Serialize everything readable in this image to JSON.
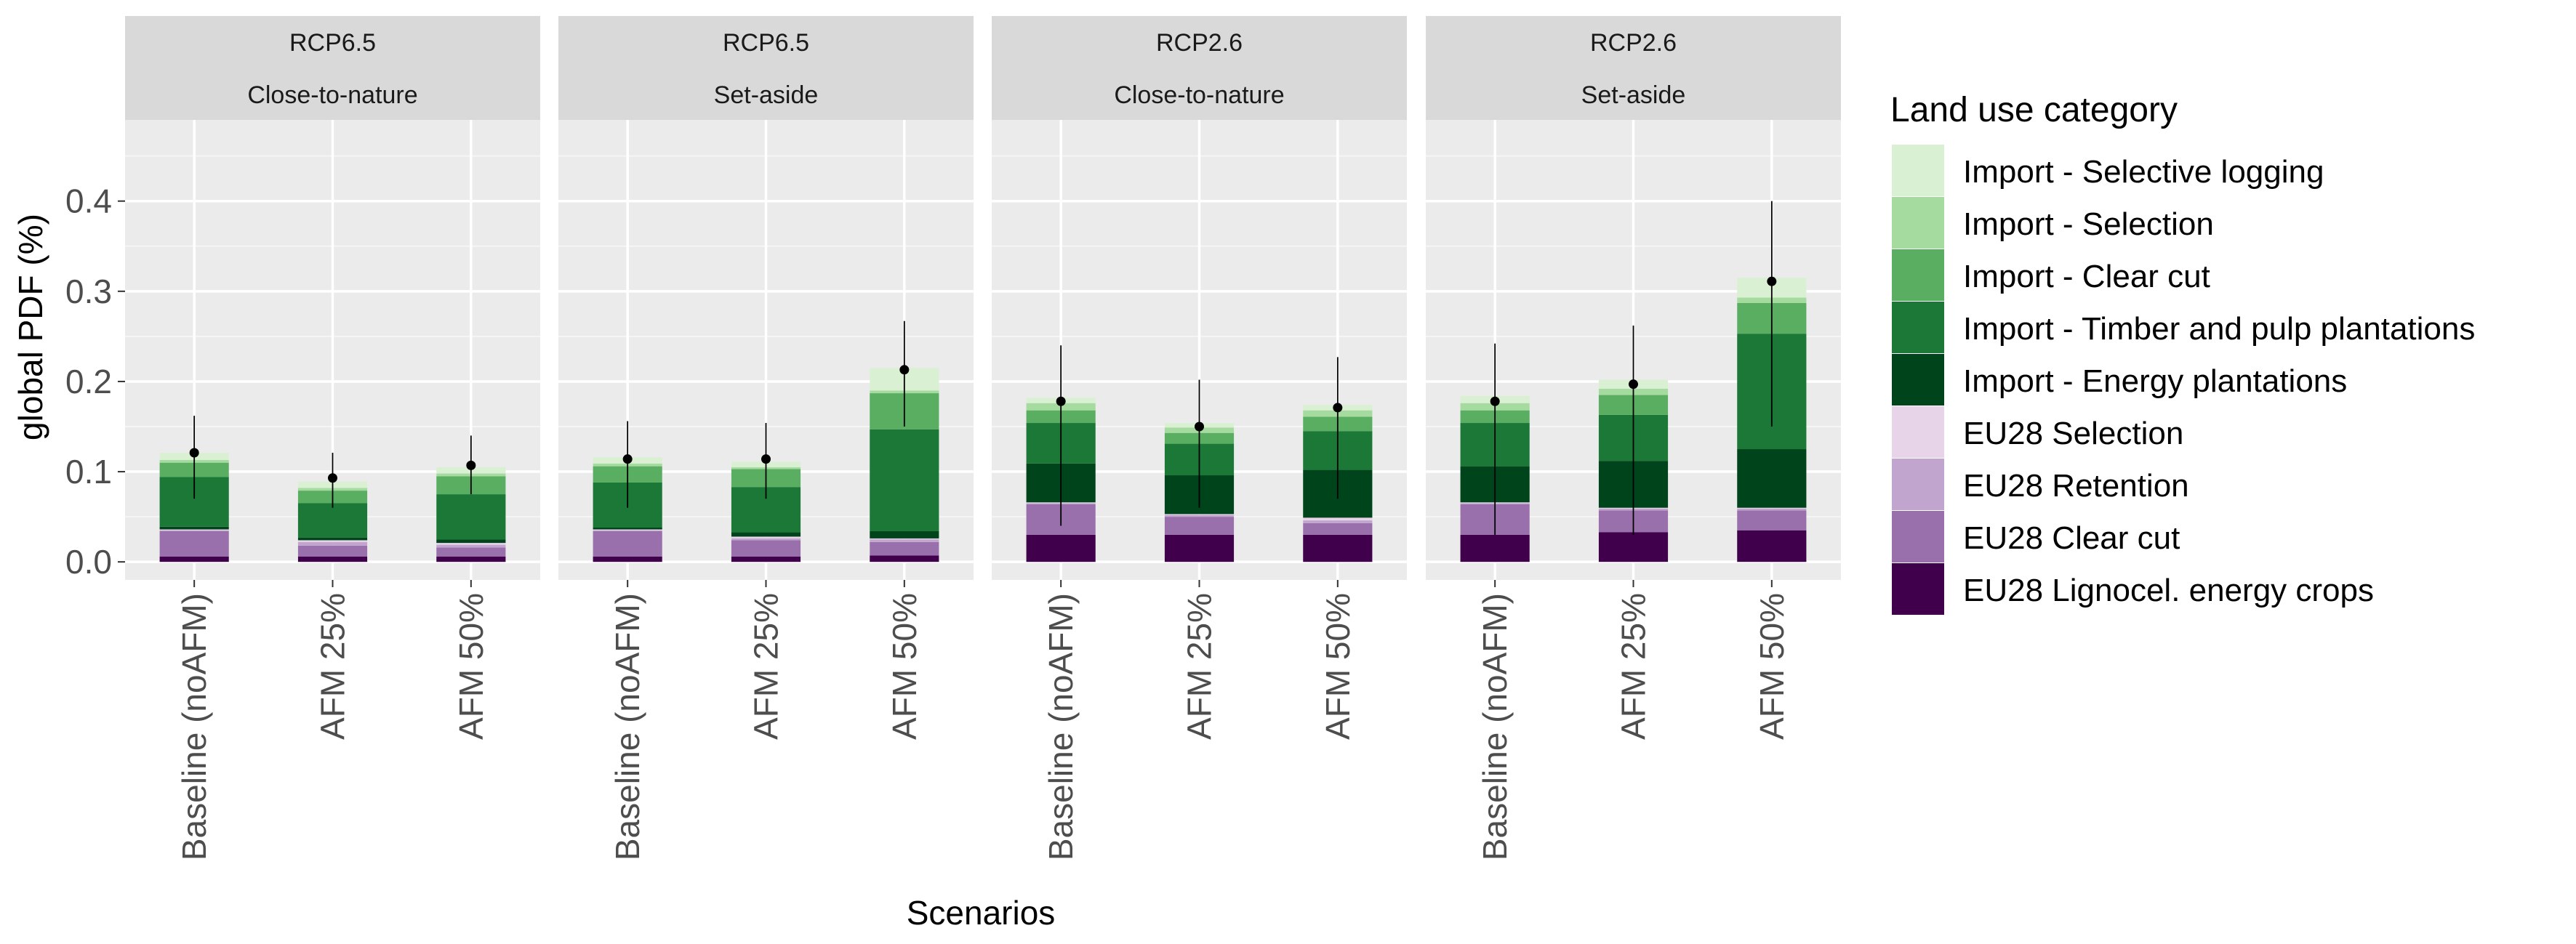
{
  "chart_data": {
    "type": "bar",
    "stacked": true,
    "facets": [
      {
        "row1": "RCP6.5",
        "row2": "Close-to-nature"
      },
      {
        "row1": "RCP6.5",
        "row2": "Set-aside"
      },
      {
        "row1": "RCP2.6",
        "row2": "Close-to-nature"
      },
      {
        "row1": "RCP2.6",
        "row2": "Set-aside"
      }
    ],
    "categories": [
      "Baseline (noAFM)",
      "AFM 25%",
      "AFM 50%"
    ],
    "xlabel": "Scenarios",
    "ylabel": "global PDF (%)",
    "ylim": [
      -0.02,
      0.49
    ],
    "yticks": [
      0.0,
      0.1,
      0.2,
      0.3,
      0.4
    ],
    "ytick_labels": [
      "0.0",
      "0.1",
      "0.2",
      "0.3",
      "0.4"
    ],
    "grid": true,
    "legend": {
      "title": "Land use category",
      "placement": "right"
    },
    "series": [
      {
        "name": "Import - Selective logging",
        "color": "#d9f0d3",
        "values": [
          [
            0.008,
            0.007,
            0.007
          ],
          [
            0.007,
            0.006,
            0.025
          ],
          [
            0.006,
            0.005,
            0.006
          ],
          [
            0.008,
            0.01,
            0.022
          ]
        ]
      },
      {
        "name": "Import - Selection",
        "color": "#a6dba0",
        "values": [
          [
            0.003,
            0.003,
            0.003
          ],
          [
            0.003,
            0.002,
            0.003
          ],
          [
            0.008,
            0.006,
            0.007
          ],
          [
            0.008,
            0.007,
            0.006
          ]
        ]
      },
      {
        "name": "Import - Clear cut",
        "color": "#5aae61",
        "values": [
          [
            0.016,
            0.014,
            0.02
          ],
          [
            0.018,
            0.02,
            0.04
          ],
          [
            0.014,
            0.012,
            0.016
          ],
          [
            0.014,
            0.022,
            0.034
          ]
        ]
      },
      {
        "name": "Import - Timber and pulp plantations",
        "color": "#1b7837",
        "values": [
          [
            0.055,
            0.038,
            0.05
          ],
          [
            0.05,
            0.05,
            0.113
          ],
          [
            0.045,
            0.035,
            0.043
          ],
          [
            0.048,
            0.051,
            0.128
          ]
        ]
      },
      {
        "name": "Import - Energy plantations",
        "color": "#00441b",
        "values": [
          [
            0.003,
            0.003,
            0.004
          ],
          [
            0.002,
            0.005,
            0.008
          ],
          [
            0.043,
            0.043,
            0.053
          ],
          [
            0.04,
            0.052,
            0.065
          ]
        ]
      },
      {
        "name": "EU28 Selection",
        "color": "#e7d4e8",
        "values": [
          [
            0.001,
            0.002,
            0.002
          ],
          [
            0.001,
            0.002,
            0.001
          ],
          [
            0.001,
            0.001,
            0.003
          ],
          [
            0.001,
            0.001,
            0.001
          ]
        ]
      },
      {
        "name": "EU28 Retention",
        "color": "#c2a5cf",
        "values": [
          [
            0.001,
            0.004,
            0.003
          ],
          [
            0.001,
            0.002,
            0.003
          ],
          [
            0.001,
            0.002,
            0.003
          ],
          [
            0.001,
            0.002,
            0.002
          ]
        ]
      },
      {
        "name": "EU28 Clear cut",
        "color": "#9970ab",
        "values": [
          [
            0.028,
            0.012,
            0.01
          ],
          [
            0.028,
            0.018,
            0.015
          ],
          [
            0.034,
            0.02,
            0.013
          ],
          [
            0.034,
            0.024,
            0.022
          ]
        ]
      },
      {
        "name": "EU28 Lignocel. energy crops",
        "color": "#40004b",
        "values": [
          [
            0.006,
            0.006,
            0.006
          ],
          [
            0.006,
            0.006,
            0.007
          ],
          [
            0.03,
            0.03,
            0.03
          ],
          [
            0.03,
            0.033,
            0.035
          ]
        ]
      }
    ],
    "points": {
      "values": [
        [
          0.121,
          0.093,
          0.107
        ],
        [
          0.114,
          0.114,
          0.213
        ],
        [
          0.178,
          0.15,
          0.171
        ],
        [
          0.178,
          0.197,
          0.311
        ]
      ],
      "err_low": [
        [
          0.07,
          0.06,
          0.075
        ],
        [
          0.06,
          0.07,
          0.15
        ],
        [
          0.04,
          0.06,
          0.07
        ],
        [
          0.03,
          0.03,
          0.15
        ]
      ],
      "err_high": [
        [
          0.162,
          0.121,
          0.14
        ],
        [
          0.156,
          0.154,
          0.267
        ],
        [
          0.24,
          0.202,
          0.227
        ],
        [
          0.242,
          0.262,
          0.4
        ]
      ]
    }
  }
}
